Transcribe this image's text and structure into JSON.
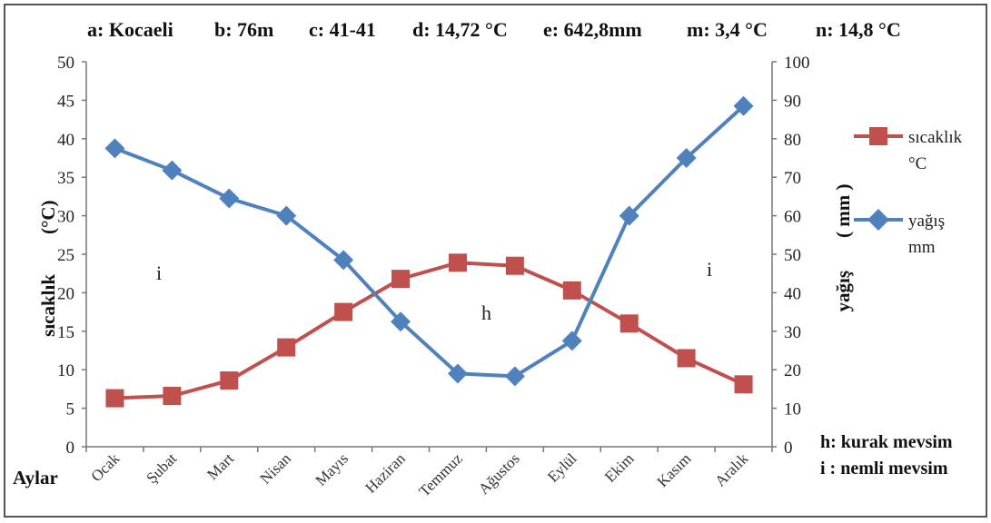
{
  "header": {
    "items": [
      "a: Kocaeli",
      "b: 76m",
      "c: 41-41",
      "d: 14,72 °C",
      "e: 642,8mm",
      "m: 3,4  °C",
      "n: 14,8  °C"
    ]
  },
  "chart_data": {
    "type": "line",
    "categories": [
      "Ocak",
      "Şubat",
      "Mart",
      "Nisan",
      "Mayıs",
      "Haziran",
      "Temmuz",
      "Ağustos",
      "Eylül",
      "Ekim",
      "Kasım",
      "Aralık"
    ],
    "x_label": "Aylar",
    "y_left": {
      "label": "sıcaklık",
      "unit": "(°C)",
      "range": [
        0,
        50
      ],
      "ticks": [
        0,
        5,
        10,
        15,
        20,
        25,
        30,
        35,
        40,
        45,
        50
      ]
    },
    "y_right": {
      "label": "yağış",
      "unit": "( mm )",
      "range": [
        0,
        100
      ],
      "ticks": [
        0,
        10,
        20,
        30,
        40,
        50,
        60,
        70,
        80,
        90,
        100
      ]
    },
    "series": [
      {
        "name": "sıcaklık °C",
        "axis": "left",
        "color": "#C0504D",
        "marker": "square",
        "values": [
          6.3,
          6.6,
          8.6,
          12.9,
          17.5,
          21.8,
          23.9,
          23.5,
          20.3,
          16.0,
          11.5,
          8.1
        ]
      },
      {
        "name": "yağış mm",
        "axis": "right",
        "color": "#4F81BD",
        "marker": "diamond",
        "values": [
          77.5,
          71.8,
          64.5,
          60.0,
          48.5,
          32.5,
          19.0,
          18.3,
          27.5,
          60.0,
          75.0,
          88.5
        ]
      }
    ],
    "legend": {
      "position": "right",
      "entries": [
        {
          "line1": "sıcaklık",
          "line2": "°C"
        },
        {
          "line1": "yağış",
          "line2": "mm"
        }
      ]
    },
    "annotations": {
      "regions": [
        {
          "text": "i"
        },
        {
          "text": "h"
        },
        {
          "text": "i"
        }
      ],
      "notes": [
        "h: kurak mevsim",
        "i : nemli mevsim"
      ]
    },
    "grid": false
  }
}
